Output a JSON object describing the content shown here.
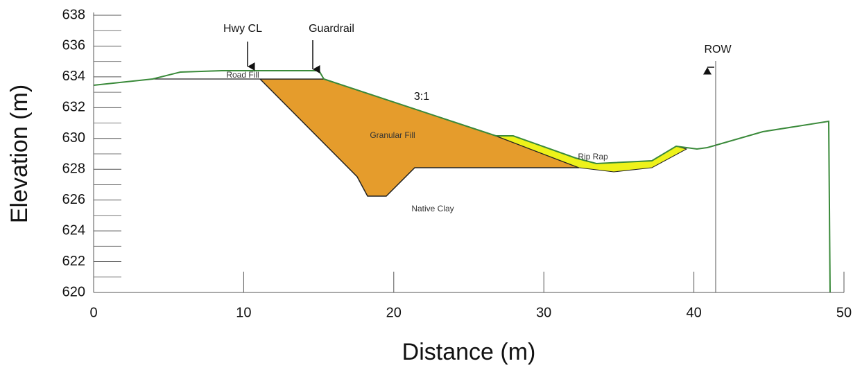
{
  "axes": {
    "x_label": "Distance (m)",
    "y_label": "Elevation (m)",
    "xticks": [
      0,
      10,
      20,
      30,
      40,
      50
    ],
    "yticks": [
      620,
      622,
      624,
      626,
      628,
      630,
      632,
      634,
      636,
      638
    ]
  },
  "labels": {
    "hwy_cl": "Hwy CL",
    "guardrail": "Guardrail",
    "row": "ROW",
    "road_fill": "Road Fill",
    "slope": "3:1",
    "granular_fill": "Granular Fill",
    "rip_rap": "Rip Rap",
    "native_clay": "Native Clay"
  }
}
